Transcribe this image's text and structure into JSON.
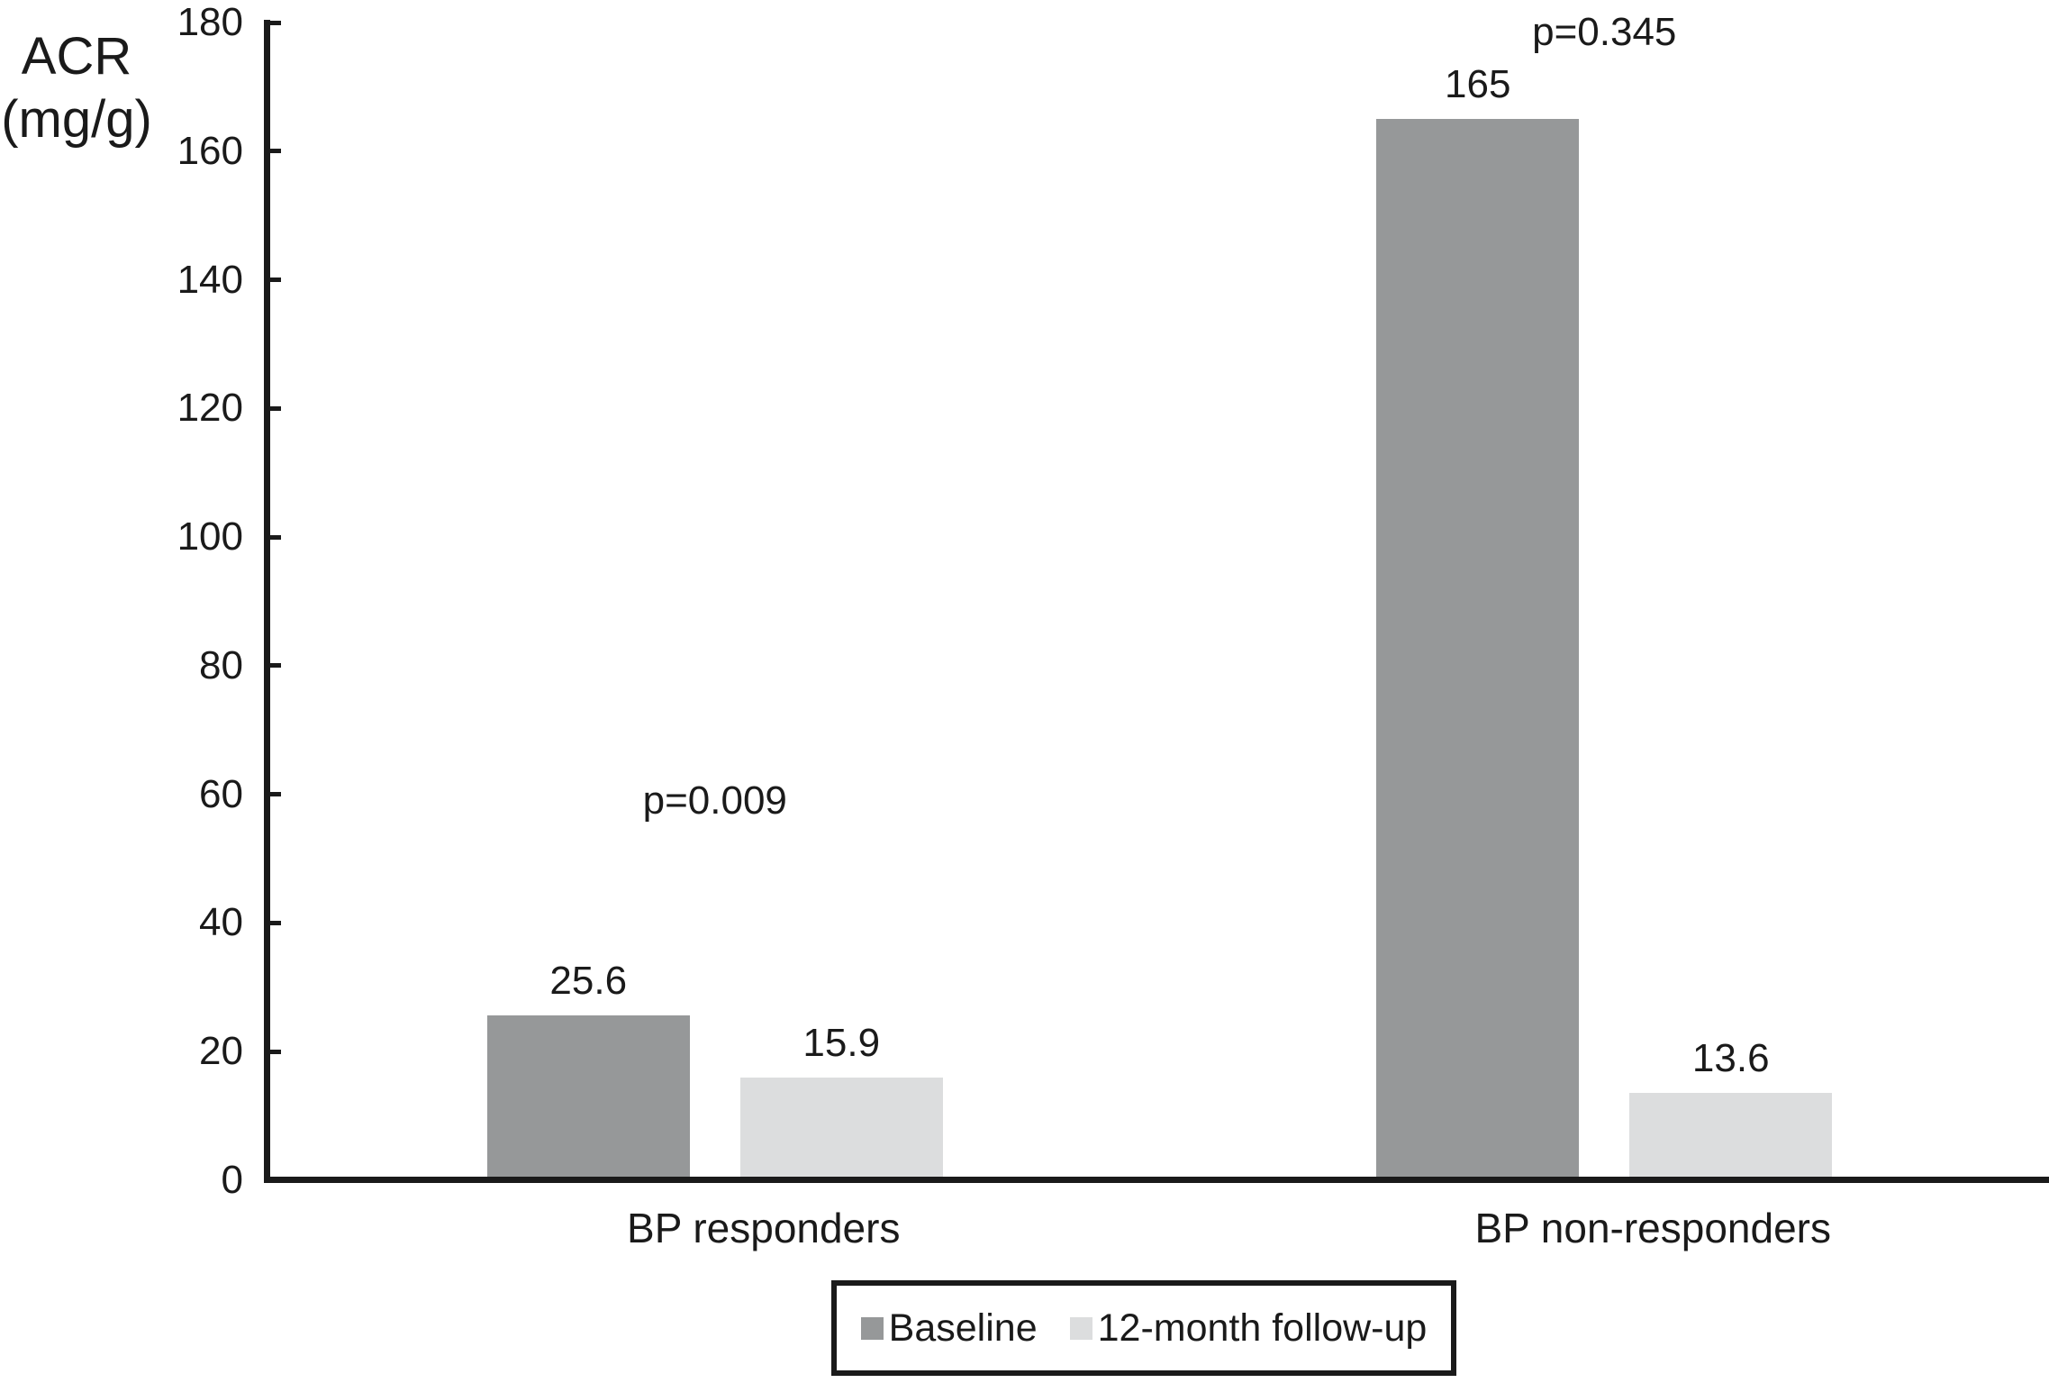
{
  "figure": {
    "background": "#ffffff",
    "text_color": "#1a1a1a",
    "axis_color": "#1a1a1a"
  },
  "chart_data": {
    "type": "bar",
    "title": "",
    "ylabel_lines": [
      "ACR",
      "(mg/g)"
    ],
    "xlabel": "",
    "categories": [
      "BP responders",
      "BP non-responders"
    ],
    "series": [
      {
        "name": "Baseline",
        "color": "#969899",
        "values": [
          25.6,
          165
        ],
        "labels": [
          "25.6",
          "165"
        ]
      },
      {
        "name": "12-month follow-up",
        "color": "#dcddde",
        "values": [
          15.9,
          13.6
        ],
        "labels": [
          "15.9",
          "13.6"
        ]
      }
    ],
    "annotations": [
      {
        "text": "p=0.009",
        "group": 0,
        "y_value": 59
      },
      {
        "text": "p=0.345",
        "group": 1,
        "y_value": 178.5
      }
    ],
    "ylim": [
      0,
      180
    ],
    "ytick_step": 20,
    "ytick_values": [
      0,
      20,
      40,
      60,
      80,
      100,
      120,
      140,
      160,
      180
    ],
    "ytick_labels": [
      "0",
      "20",
      "40",
      "60",
      "80",
      "100",
      "120",
      "140",
      "160",
      "180"
    ],
    "grid": false,
    "legend_position": "bottom"
  }
}
